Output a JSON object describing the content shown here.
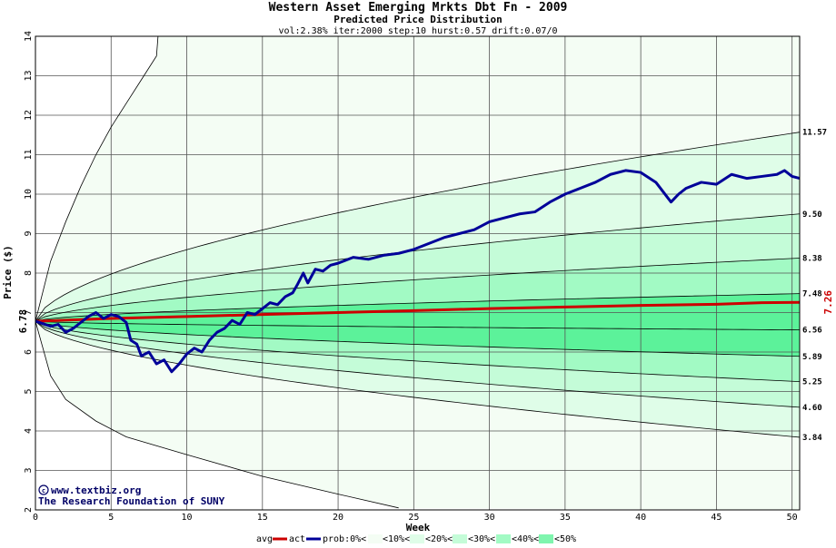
{
  "header": {
    "title": "Western Asset Emerging Mrkts Dbt Fn - 2009",
    "subtitle": "Predicted Price Distribution",
    "params": "vol:2.38% iter:2000 step:10 hurst:0.57 drift:0.07/0"
  },
  "credits": {
    "line1": "www.textbiz.org",
    "line2": "The Research Foundation of SUNY"
  },
  "legend": {
    "avg": "avg",
    "act": "act",
    "prob": "prob:0%<",
    "b10": "<10%<",
    "b20": "<20%<",
    "b30": "<30%<",
    "b40": "<40%<",
    "b50": "<50%"
  },
  "colors": {
    "avg": "#cc0000",
    "act": "#000099",
    "band0": "#f4fdf4",
    "band10": "#dffde8",
    "band20": "#c4fcd8",
    "band30": "#a2fac4",
    "band40": "#7ff5ae",
    "band50": "#5cf29a",
    "grid": "#000000",
    "start_label": "#000000",
    "end_label": "#cc0000"
  },
  "chart_data": {
    "type": "line",
    "title": "Western Asset Emerging Mrkts Dbt Fn - 2009",
    "subtitle": "Predicted Price Distribution",
    "xlabel": "Week",
    "ylabel": "Price ($)",
    "xlim": [
      0,
      50.5
    ],
    "ylim": [
      2,
      14
    ],
    "x_ticks": [
      0,
      5,
      10,
      15,
      20,
      25,
      30,
      35,
      40,
      45,
      50
    ],
    "y_ticks": [
      2,
      3,
      4,
      5,
      6,
      7,
      8,
      9,
      10,
      11,
      12,
      13,
      14
    ],
    "grid": true,
    "start_value_label": "6.78",
    "end_value_label": "7.26",
    "right_labels": [
      "11.57",
      "9.50",
      "8.38",
      "7.48",
      "6.56",
      "5.89",
      "5.25",
      "4.60",
      "3.84"
    ],
    "start_price": 6.78,
    "percentile_curves_end": [
      11.57,
      9.5,
      8.38,
      7.48,
      6.56,
      5.89,
      5.25,
      4.6,
      3.84
    ],
    "outer_envelope": {
      "upper": [
        [
          0,
          6.78
        ],
        [
          1,
          8.3
        ],
        [
          2,
          9.3
        ],
        [
          3,
          10.2
        ],
        [
          4,
          11.0
        ],
        [
          5,
          11.7
        ],
        [
          6,
          12.3
        ],
        [
          7,
          12.9
        ],
        [
          8,
          13.5
        ],
        [
          8.1,
          14
        ]
      ],
      "lower": [
        [
          0,
          6.78
        ],
        [
          1,
          5.4
        ],
        [
          2,
          4.8
        ],
        [
          4,
          4.25
        ],
        [
          6,
          3.85
        ],
        [
          10,
          3.4
        ],
        [
          15,
          2.85
        ],
        [
          20,
          2.4
        ],
        [
          24,
          2.05
        ]
      ]
    },
    "series": [
      {
        "name": "avg",
        "color": "#cc0000",
        "points": [
          [
            0,
            6.78
          ],
          [
            5,
            6.85
          ],
          [
            10,
            6.9
          ],
          [
            15,
            6.95
          ],
          [
            20,
            7.0
          ],
          [
            25,
            7.05
          ],
          [
            30,
            7.1
          ],
          [
            35,
            7.14
          ],
          [
            40,
            7.18
          ],
          [
            45,
            7.21
          ],
          [
            48,
            7.25
          ],
          [
            50.5,
            7.26
          ]
        ]
      },
      {
        "name": "act",
        "color": "#000099",
        "points": [
          [
            0,
            6.78
          ],
          [
            0.5,
            6.72
          ],
          [
            1,
            6.65
          ],
          [
            1.5,
            6.7
          ],
          [
            2,
            6.5
          ],
          [
            2.5,
            6.6
          ],
          [
            3,
            6.75
          ],
          [
            3.5,
            6.9
          ],
          [
            4,
            7.0
          ],
          [
            4.5,
            6.85
          ],
          [
            5,
            6.95
          ],
          [
            5.5,
            6.9
          ],
          [
            6,
            6.75
          ],
          [
            6.3,
            6.3
          ],
          [
            6.7,
            6.2
          ],
          [
            7,
            5.9
          ],
          [
            7.5,
            6.0
          ],
          [
            8,
            5.7
          ],
          [
            8.5,
            5.8
          ],
          [
            9,
            5.5
          ],
          [
            9.5,
            5.7
          ],
          [
            10,
            5.95
          ],
          [
            10.5,
            6.1
          ],
          [
            11,
            6.0
          ],
          [
            11.5,
            6.3
          ],
          [
            12,
            6.5
          ],
          [
            12.5,
            6.6
          ],
          [
            13,
            6.8
          ],
          [
            13.5,
            6.7
          ],
          [
            14,
            7.0
          ],
          [
            14.5,
            6.95
          ],
          [
            15,
            7.1
          ],
          [
            15.5,
            7.25
          ],
          [
            16,
            7.2
          ],
          [
            16.5,
            7.4
          ],
          [
            17,
            7.5
          ],
          [
            17.3,
            7.7
          ],
          [
            17.7,
            8.0
          ],
          [
            18,
            7.75
          ],
          [
            18.5,
            8.1
          ],
          [
            19,
            8.05
          ],
          [
            19.5,
            8.2
          ],
          [
            20,
            8.25
          ],
          [
            21,
            8.4
          ],
          [
            22,
            8.35
          ],
          [
            23,
            8.45
          ],
          [
            24,
            8.5
          ],
          [
            25,
            8.6
          ],
          [
            26,
            8.75
          ],
          [
            27,
            8.9
          ],
          [
            28,
            9.0
          ],
          [
            29,
            9.1
          ],
          [
            30,
            9.3
          ],
          [
            31,
            9.4
          ],
          [
            32,
            9.5
          ],
          [
            33,
            9.55
          ],
          [
            34,
            9.8
          ],
          [
            35,
            10.0
          ],
          [
            36,
            10.15
          ],
          [
            37,
            10.3
          ],
          [
            38,
            10.5
          ],
          [
            39,
            10.6
          ],
          [
            40,
            10.55
          ],
          [
            41,
            10.3
          ],
          [
            42,
            9.8
          ],
          [
            42.5,
            10.0
          ],
          [
            43,
            10.15
          ],
          [
            44,
            10.3
          ],
          [
            45,
            10.25
          ],
          [
            46,
            10.5
          ],
          [
            47,
            10.4
          ],
          [
            48,
            10.45
          ],
          [
            49,
            10.5
          ],
          [
            49.5,
            10.6
          ],
          [
            50,
            10.45
          ],
          [
            50.5,
            10.4
          ]
        ]
      }
    ]
  }
}
